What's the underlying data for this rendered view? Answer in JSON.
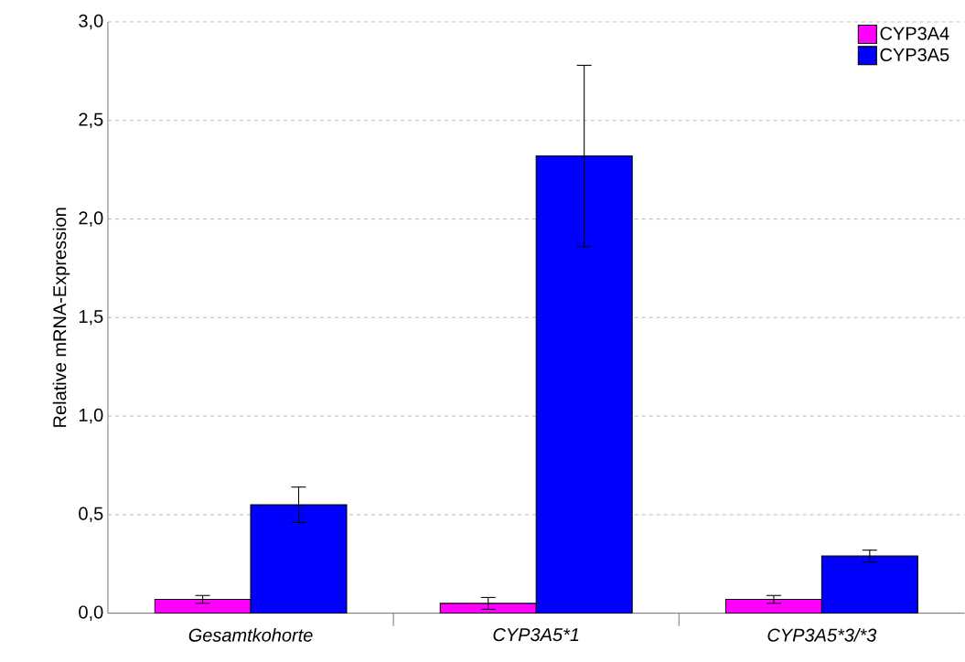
{
  "chart_data": {
    "type": "bar",
    "ylabel": "Relative mRNA-Expression",
    "categories": [
      "Gesamtkohorte",
      "CYP3A5*1",
      "CYP3A5*3/*3"
    ],
    "series": [
      {
        "name": "CYP3A4",
        "color": "#ff00ff",
        "values": [
          0.07,
          0.05,
          0.07
        ],
        "errors": [
          0.02,
          0.03,
          0.02
        ]
      },
      {
        "name": "CYP3A5",
        "color": "#0000ff",
        "values": [
          0.55,
          2.32,
          0.29
        ],
        "errors": [
          0.09,
          0.46,
          0.03
        ]
      }
    ],
    "ylim": [
      0,
      3
    ],
    "yticks": [
      {
        "value": 0,
        "label": "0,0"
      },
      {
        "value": 0.5,
        "label": "0,5"
      },
      {
        "value": 1,
        "label": "1,0"
      },
      {
        "value": 1.5,
        "label": "1,5"
      },
      {
        "value": 2,
        "label": "2,0"
      },
      {
        "value": 2.5,
        "label": "2,5"
      },
      {
        "value": 3,
        "label": "3,0"
      }
    ],
    "grid": "y",
    "legend": "top right"
  }
}
